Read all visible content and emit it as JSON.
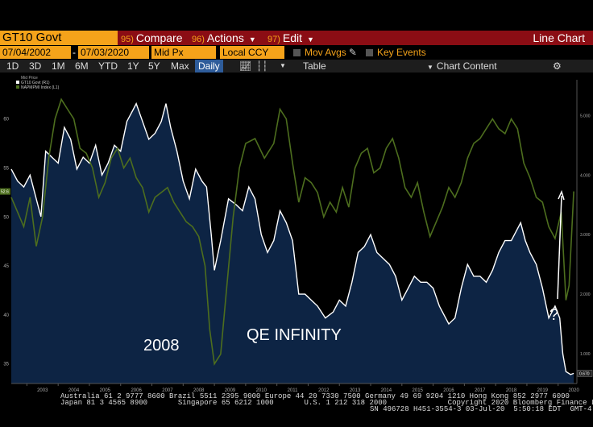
{
  "toolbar": {
    "ticker": "GT10 Govt",
    "compare": {
      "num": "95)",
      "label": "Compare"
    },
    "actions": {
      "num": "96)",
      "label": "Actions"
    },
    "edit": {
      "num": "97)",
      "label": "Edit"
    },
    "chart_label": "Line Chart"
  },
  "fields": {
    "start_date": "07/04/2002",
    "end_date": "07/03/2020",
    "price_field": "Mid Px",
    "currency": "Local CCY",
    "mov_avgs": "Mov Avgs",
    "key_events": "Key Events"
  },
  "periods": [
    "1D",
    "3D",
    "1M",
    "6M",
    "YTD",
    "1Y",
    "5Y",
    "Max"
  ],
  "frequency": "Daily",
  "table_label": "Table",
  "chart_content_label": "Chart Content",
  "footer": {
    "line1": "Australia 61 2 9777 8600 Brazil 5511 2395 9000 Europe 44 20 7330 7500 Germany 49 69 9204 1210 Hong Kong 852 2977 6000",
    "line2": "Japan 81 3 4565 8900       Singapore 65 6212 1000       U.S. 1 212 318 2000              Copyright 2020 Bloomberg Finance L.P.",
    "line3": "SN 496728 H451-3554-3 03-Jul-20  5:50:18 EDT  GMT-4:00"
  },
  "annotations": {
    "crisis": "2008",
    "qe": "QE INFINITY",
    "question": "?"
  },
  "chart_data": {
    "type": "line",
    "title": "",
    "legend_title": "Mid Price",
    "legend": [
      "GT10 Govt (R1)",
      "NAPMPMI Index (L1)"
    ],
    "x_tick_labels": [
      "2003",
      "2004",
      "2005",
      "2006",
      "2007",
      "2008",
      "2009",
      "2010",
      "2011",
      "2012",
      "2013",
      "2014",
      "2015",
      "2016",
      "2017",
      "2018",
      "2019",
      "2020"
    ],
    "y_left": {
      "ticks": [
        35,
        40,
        45,
        50,
        55,
        60
      ],
      "range": [
        33,
        64
      ]
    },
    "y_right": {
      "ticks": [
        "1.000",
        "2.000",
        "3.000",
        "4.000",
        "5.000"
      ],
      "range": [
        0.5,
        5.6
      ]
    },
    "left_last_value": "52.6",
    "right_last_value": "0.670",
    "x_range": [
      2002.5,
      2020.6
    ],
    "series": [
      {
        "name": "GT10 Govt (R1)",
        "axis": "right",
        "color": "#ffffff",
        "x": [
          2002.5,
          2002.7,
          2002.9,
          2003.1,
          2003.3,
          2003.45,
          2003.6,
          2003.8,
          2004.0,
          2004.2,
          2004.4,
          2004.6,
          2004.8,
          2005.0,
          2005.2,
          2005.4,
          2005.6,
          2005.8,
          2006.0,
          2006.2,
          2006.4,
          2006.5,
          2006.7,
          2006.9,
          2007.1,
          2007.3,
          2007.45,
          2007.6,
          2007.8,
          2008.0,
          2008.2,
          2008.4,
          2008.6,
          2008.75,
          2008.9,
          2009.0,
          2009.2,
          2009.45,
          2009.7,
          2009.9,
          2010.1,
          2010.3,
          2010.5,
          2010.7,
          2010.9,
          2011.1,
          2011.3,
          2011.5,
          2011.7,
          2011.9,
          2012.1,
          2012.3,
          2012.55,
          2012.8,
          2013.0,
          2013.2,
          2013.4,
          2013.6,
          2013.8,
          2014.0,
          2014.2,
          2014.4,
          2014.6,
          2014.8,
          2015.0,
          2015.2,
          2015.4,
          2015.6,
          2015.8,
          2016.0,
          2016.2,
          2016.5,
          2016.7,
          2016.9,
          2017.1,
          2017.3,
          2017.5,
          2017.7,
          2017.9,
          2018.1,
          2018.3,
          2018.5,
          2018.8,
          2018.95,
          2019.1,
          2019.3,
          2019.5,
          2019.7,
          2019.9,
          2020.05,
          2020.15,
          2020.25,
          2020.4,
          2020.5
        ],
        "y": [
          4.1,
          3.9,
          3.8,
          4.0,
          3.6,
          3.3,
          4.4,
          4.3,
          4.2,
          4.8,
          4.6,
          4.1,
          4.3,
          4.2,
          4.5,
          4.0,
          4.2,
          4.5,
          4.4,
          4.9,
          5.1,
          5.2,
          4.9,
          4.6,
          4.7,
          4.9,
          5.2,
          4.8,
          4.4,
          3.9,
          3.6,
          4.1,
          3.9,
          3.8,
          3.0,
          2.4,
          2.9,
          3.6,
          3.5,
          3.4,
          3.8,
          3.6,
          3.0,
          2.7,
          2.9,
          3.4,
          3.2,
          2.9,
          2.0,
          2.0,
          1.9,
          1.8,
          1.6,
          1.7,
          1.9,
          1.8,
          2.2,
          2.7,
          2.8,
          3.0,
          2.7,
          2.6,
          2.5,
          2.3,
          1.9,
          2.1,
          2.3,
          2.2,
          2.2,
          2.1,
          1.8,
          1.5,
          1.6,
          2.1,
          2.5,
          2.3,
          2.3,
          2.2,
          2.4,
          2.7,
          2.9,
          2.9,
          3.2,
          2.9,
          2.7,
          2.5,
          2.1,
          1.6,
          1.8,
          1.6,
          1.0,
          0.7,
          0.65,
          0.67
        ]
      },
      {
        "name": "NAPMPMI Index (L1)",
        "axis": "left",
        "color": "#4d6e1e",
        "x": [
          2002.5,
          2002.7,
          2002.9,
          2003.1,
          2003.3,
          2003.5,
          2003.7,
          2003.9,
          2004.1,
          2004.3,
          2004.5,
          2004.7,
          2004.9,
          2005.1,
          2005.3,
          2005.5,
          2005.7,
          2005.9,
          2006.1,
          2006.3,
          2006.5,
          2006.7,
          2006.9,
          2007.1,
          2007.3,
          2007.5,
          2007.7,
          2007.9,
          2008.1,
          2008.3,
          2008.5,
          2008.7,
          2008.85,
          2009.0,
          2009.2,
          2009.4,
          2009.6,
          2009.8,
          2010.0,
          2010.3,
          2010.6,
          2010.9,
          2011.1,
          2011.3,
          2011.5,
          2011.7,
          2011.9,
          2012.1,
          2012.3,
          2012.5,
          2012.7,
          2012.9,
          2013.1,
          2013.3,
          2013.5,
          2013.7,
          2013.9,
          2014.1,
          2014.3,
          2014.5,
          2014.7,
          2014.9,
          2015.1,
          2015.3,
          2015.5,
          2015.7,
          2015.9,
          2016.1,
          2016.3,
          2016.5,
          2016.7,
          2016.9,
          2017.1,
          2017.3,
          2017.5,
          2017.7,
          2017.9,
          2018.1,
          2018.3,
          2018.5,
          2018.7,
          2018.9,
          2019.1,
          2019.3,
          2019.5,
          2019.7,
          2019.9,
          2020.1,
          2020.25,
          2020.35,
          2020.5
        ],
        "y": [
          52.0,
          50.5,
          49.0,
          52.0,
          47.0,
          50.0,
          56.0,
          60.0,
          62.0,
          61.0,
          60.0,
          57.0,
          56.5,
          55.0,
          52.0,
          53.5,
          56.0,
          57.0,
          55.0,
          56.0,
          54.0,
          53.0,
          50.5,
          52.0,
          52.5,
          53.0,
          51.5,
          50.5,
          49.5,
          49.0,
          48.0,
          45.0,
          38.5,
          35.0,
          36.0,
          43.0,
          50.0,
          55.0,
          57.5,
          58.0,
          56.0,
          57.5,
          61.0,
          60.0,
          55.5,
          51.5,
          54.0,
          53.5,
          52.5,
          50.0,
          51.5,
          50.5,
          53.0,
          51.0,
          55.0,
          56.5,
          57.0,
          54.5,
          55.0,
          57.0,
          58.0,
          56.0,
          53.0,
          52.0,
          53.5,
          50.5,
          48.0,
          49.5,
          51.0,
          53.0,
          52.0,
          53.5,
          56.0,
          57.5,
          58.0,
          59.0,
          60.0,
          59.0,
          58.5,
          60.0,
          59.0,
          55.5,
          54.0,
          52.0,
          51.5,
          49.0,
          47.8,
          50.5,
          41.5,
          43.0,
          52.6
        ]
      }
    ]
  }
}
